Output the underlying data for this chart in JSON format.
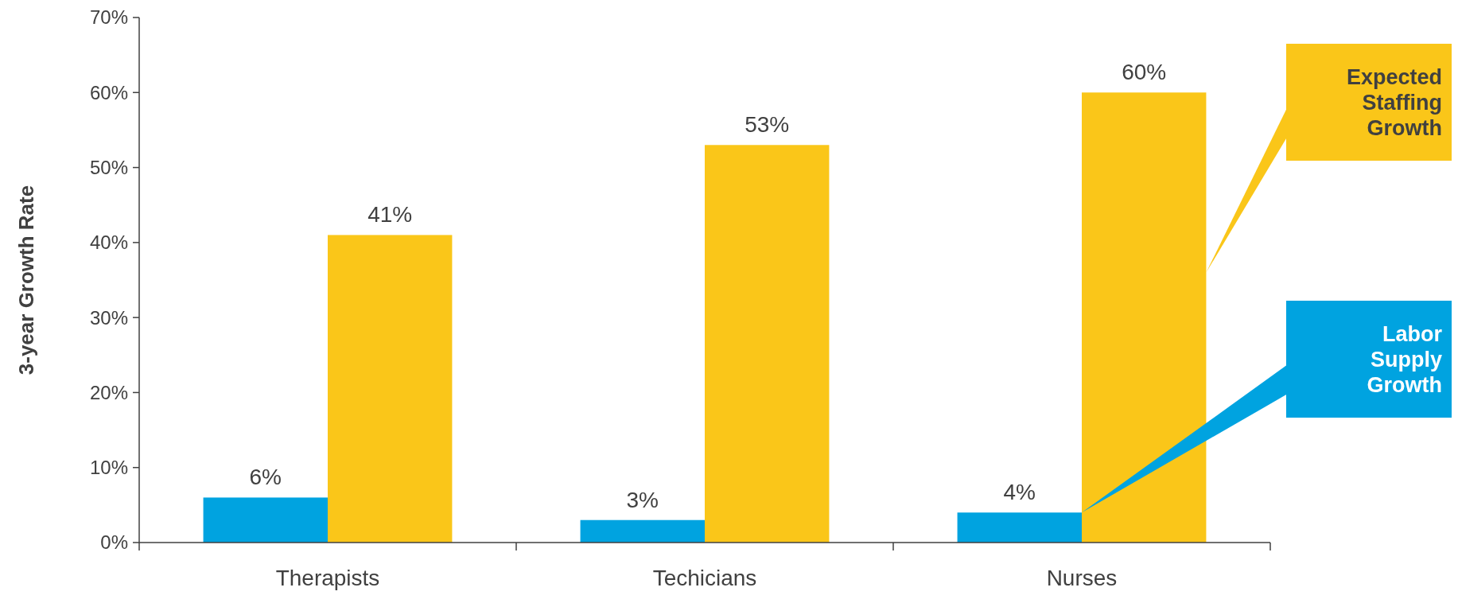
{
  "chart_data": {
    "type": "bar",
    "ylabel": "3-year Growth Rate",
    "categories": [
      "Therapists",
      "Techicians",
      "Nurses"
    ],
    "series": [
      {
        "name": "Labor Supply Growth",
        "color": "#00a3e0",
        "values": [
          6,
          3,
          4
        ]
      },
      {
        "name": "Expected Staffing Growth",
        "color": "#fac619",
        "values": [
          41,
          53,
          60
        ]
      }
    ],
    "ylim": [
      0,
      70
    ],
    "yticks": [
      {
        "value": 0,
        "label": "0%"
      },
      {
        "value": 10,
        "label": "10%"
      },
      {
        "value": 20,
        "label": "20%"
      },
      {
        "value": 30,
        "label": "30%"
      },
      {
        "value": 40,
        "label": "40%"
      },
      {
        "value": 50,
        "label": "50%"
      },
      {
        "value": 60,
        "label": "60%"
      },
      {
        "value": 70,
        "label": "70%"
      }
    ],
    "value_labels": [
      [
        "6%",
        "3%",
        "4%"
      ],
      [
        "41%",
        "53%",
        "60%"
      ]
    ],
    "grid": false,
    "legend": "right"
  }
}
